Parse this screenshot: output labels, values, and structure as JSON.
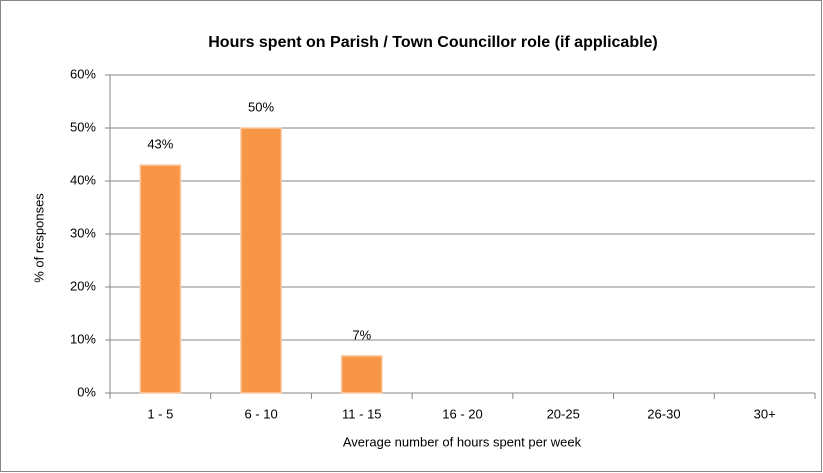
{
  "chart_data": {
    "type": "bar",
    "title": "Hours spent on Parish / Town Councillor role (if applicable)",
    "categories": [
      "1 - 5",
      "6 - 10",
      "11 - 15",
      "16 - 20",
      "20-25",
      "26-30",
      "30+"
    ],
    "values": [
      43,
      50,
      7,
      0,
      0,
      0,
      0
    ],
    "value_labels": [
      "43%",
      "50%",
      "7%",
      null,
      null,
      null,
      null
    ],
    "color": "#f79646",
    "x_label": "Average number of hours spent per week",
    "y_label": "% of responses",
    "ylim": [
      0,
      60
    ],
    "yticks": [
      {
        "value": 0,
        "label": "0%"
      },
      {
        "value": 10,
        "label": "10%"
      },
      {
        "value": 20,
        "label": "20%"
      },
      {
        "value": 30,
        "label": "30%"
      },
      {
        "value": 40,
        "label": "40%"
      },
      {
        "value": 50,
        "label": "50%"
      },
      {
        "value": 60,
        "label": "60%"
      }
    ],
    "grid": true
  }
}
